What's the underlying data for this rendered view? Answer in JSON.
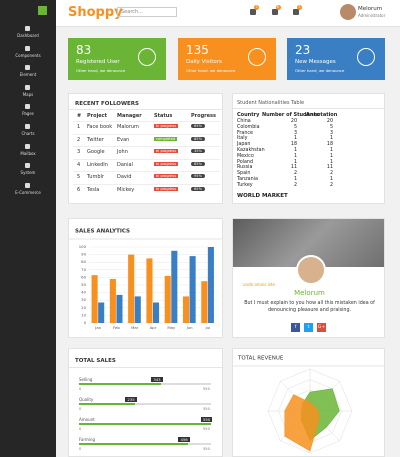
{
  "sidebar": {
    "menu": [
      "Dashboard",
      "Components",
      "Element",
      "Maps",
      "Pages",
      "Charts",
      "Mailbox",
      "System",
      "E-Commerce"
    ]
  },
  "header": {
    "logo": "Shoppy",
    "search": "Search...",
    "badges": [
      "3",
      "6",
      "5"
    ],
    "user": "Melorum",
    "role": "Administrator"
  },
  "stats": [
    {
      "value": "83",
      "label": "Registered User",
      "text": "Other hand, we denounce",
      "color": "#6ab536"
    },
    {
      "value": "135",
      "label": "Daily Visitors",
      "text": "Other hand, we denounce",
      "color": "#f7901e"
    },
    {
      "value": "23",
      "label": "New Messages",
      "text": "Other hand, we denounce",
      "color": "#3a7fc4"
    }
  ],
  "followers": {
    "title": "RECENT FOLLOWERS",
    "columns": [
      "#",
      "Project",
      "Manager",
      "Status",
      "Progress"
    ],
    "rows": [
      [
        "1",
        "Face book",
        "Malorum",
        "In progress",
        "65%"
      ],
      [
        "2",
        "Twitter",
        "Evan",
        "completed",
        "85%"
      ],
      [
        "3",
        "Google",
        "John",
        "In progress",
        "35%"
      ],
      [
        "4",
        "LinkedIn",
        "Danial",
        "In progress",
        "65%"
      ],
      [
        "5",
        "Tumblr",
        "David",
        "In progress",
        "95%"
      ],
      [
        "6",
        "Tesla",
        "Mickey",
        "In progress",
        "65%"
      ]
    ]
  },
  "nationalities": {
    "title": "Student Nationalities Table",
    "columns": [
      "Country",
      "Number of Students",
      "Annotation"
    ],
    "rows": [
      [
        "China",
        "20",
        "20"
      ],
      [
        "Colombia",
        "5",
        "5"
      ],
      [
        "France",
        "3",
        "3"
      ],
      [
        "Italy",
        "1",
        "1"
      ],
      [
        "Japan",
        "18",
        "18"
      ],
      [
        "Kazakhstan",
        "1",
        "1"
      ],
      [
        "Mexico",
        "1",
        "1"
      ],
      [
        "Poland",
        "1",
        "1"
      ],
      [
        "Russia",
        "11",
        "11"
      ],
      [
        "Spain",
        "2",
        "2"
      ],
      [
        "Tanzania",
        "1",
        "1"
      ],
      [
        "Turkey",
        "2",
        "2"
      ]
    ],
    "footer": "WORLD MARKET"
  },
  "chart_data": [
    {
      "type": "bar",
      "title": "SALES ANALYTICS",
      "categories": [
        "Jan",
        "Feb",
        "Mar",
        "Apr",
        "May",
        "Jun",
        "Jul"
      ],
      "series": [
        {
          "color": "#f7901e",
          "values": [
            63,
            58,
            90,
            85,
            62,
            35,
            55
          ]
        },
        {
          "color": "#3a7fc4",
          "values": [
            27,
            37,
            35,
            27,
            95,
            88,
            100
          ]
        }
      ],
      "ylim": [
        0,
        100
      ],
      "yticks": [
        0,
        10,
        20,
        30,
        40,
        50,
        60,
        70,
        80,
        90,
        100
      ],
      "grid": true
    },
    {
      "type": "radar",
      "title": "TOTAL REVENUE",
      "rlim": [
        0,
        100
      ],
      "series": [
        {
          "color": "#6ab536",
          "values": [
            45,
            75,
            70,
            55,
            70,
            30,
            20,
            25
          ]
        },
        {
          "color": "#f7901e",
          "values": [
            20,
            15,
            20,
            30,
            95,
            85,
            60,
            55
          ]
        }
      ]
    }
  ],
  "profile": {
    "tag": "unde omnis iste",
    "name": "Melorum",
    "text": [
      "But I must explain to you how all this mistaken idea of",
      "denouncing pleasure and praising."
    ],
    "social": [
      "f",
      "t",
      "G+"
    ]
  },
  "total_sales": {
    "title": "TOTAL SALES",
    "min": 0,
    "max": 550,
    "items": [
      {
        "label": "Selling",
        "value": 343
      },
      {
        "label": "Quality",
        "value": 235
      },
      {
        "label": "Amount",
        "value": 550
      },
      {
        "label": "Farming",
        "value": 456
      }
    ]
  }
}
